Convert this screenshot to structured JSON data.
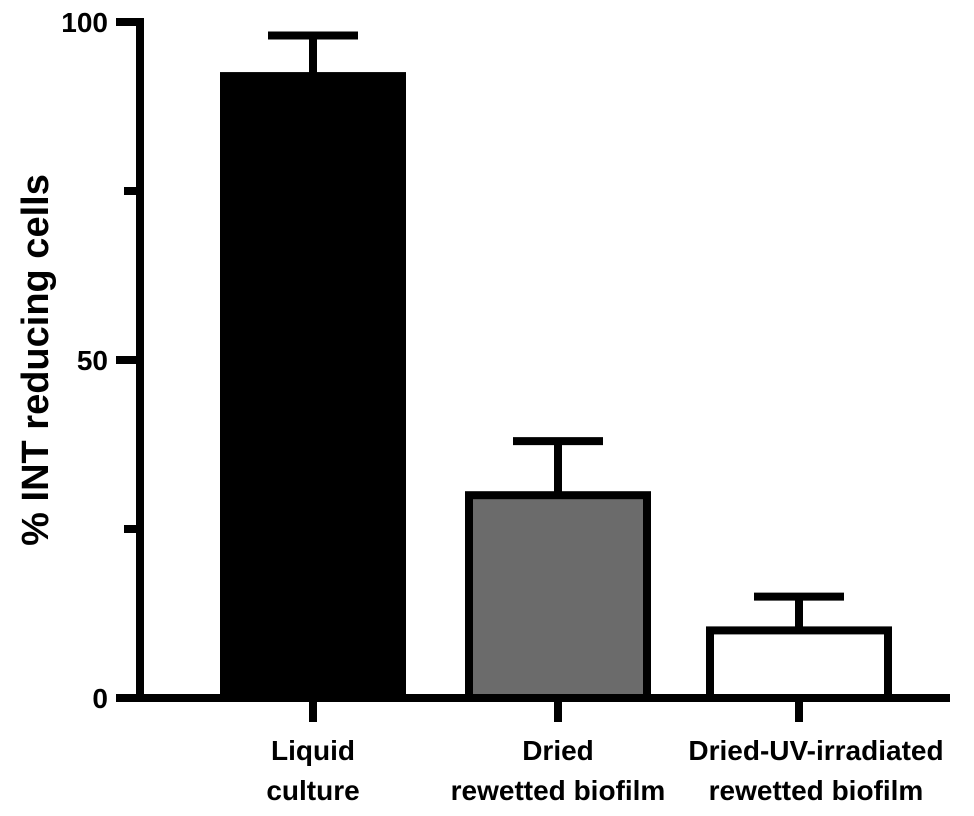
{
  "chart_data": {
    "type": "bar",
    "categories": [
      [
        "Liquid",
        "culture"
      ],
      [
        "Dried",
        "rewetted biofilm"
      ],
      [
        "Dried-UV-irradiated",
        "rewetted biofilm"
      ]
    ],
    "values": [
      92,
      30,
      10
    ],
    "error_upper": [
      98,
      38,
      15
    ],
    "bar_colors": [
      "#000000",
      "#6b6b6b",
      "#ffffff"
    ],
    "ylabel": "% INT reducing cells",
    "xlabel": "",
    "ylim": [
      0,
      100
    ],
    "yticks_major": [
      0,
      50,
      100
    ],
    "yticks_minor": [
      25,
      75
    ],
    "grid": false,
    "legend": "none"
  }
}
